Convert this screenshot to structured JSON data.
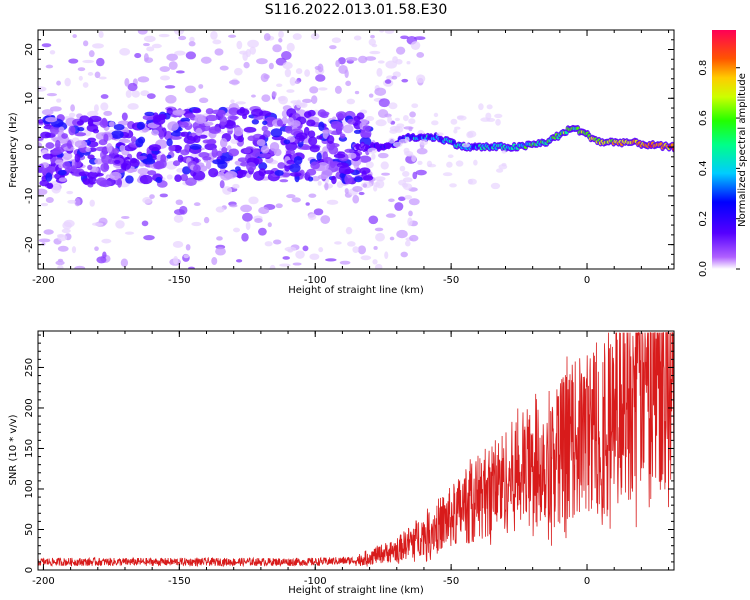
{
  "title": "S116.2022.013.01.58.E30",
  "colors": {
    "signal": "#d81b1b",
    "axis": "#000000"
  },
  "chart_data": [
    {
      "type": "heatmap",
      "xlabel": "Height of straight line (km)",
      "ylabel": "Frequency (Hz)",
      "xlim": [
        -202,
        32
      ],
      "ylim": [
        -25,
        24
      ],
      "x_ticks": [
        -200,
        -150,
        -100,
        -50,
        0
      ],
      "y_ticks": [
        -20,
        -10,
        0,
        10,
        20
      ],
      "colorbar": {
        "label": "Normalized spectral amplitude",
        "range": [
          0.0,
          0.95
        ],
        "ticks": [
          "0.0",
          "0.2",
          "0.4",
          "0.6",
          "0.8"
        ]
      },
      "ridge": [
        {
          "x": -200,
          "y": -1
        },
        {
          "x": -180,
          "y": -1
        },
        {
          "x": -160,
          "y": 0
        },
        {
          "x": -140,
          "y": 1
        },
        {
          "x": -120,
          "y": 1
        },
        {
          "x": -100,
          "y": 0
        },
        {
          "x": -85,
          "y": 0
        },
        {
          "x": -75,
          "y": 0
        },
        {
          "x": -65,
          "y": 2
        },
        {
          "x": -55,
          "y": 2
        },
        {
          "x": -45,
          "y": 0
        },
        {
          "x": -35,
          "y": 0
        },
        {
          "x": -25,
          "y": 0
        },
        {
          "x": -15,
          "y": 1
        },
        {
          "x": -5,
          "y": 4
        },
        {
          "x": 5,
          "y": 1
        },
        {
          "x": 15,
          "y": 1
        },
        {
          "x": 30,
          "y": 0
        }
      ],
      "intensity": [
        {
          "x": -200,
          "v": 0.2
        },
        {
          "x": -90,
          "v": 0.22
        },
        {
          "x": -80,
          "v": 0.3
        },
        {
          "x": -70,
          "v": 0.45
        },
        {
          "x": -50,
          "v": 0.5
        },
        {
          "x": -30,
          "v": 0.55
        },
        {
          "x": -10,
          "v": 0.65
        },
        {
          "x": 10,
          "v": 0.8
        },
        {
          "x": 30,
          "v": 0.9
        }
      ]
    },
    {
      "type": "line",
      "xlabel": "Height of straight line (km)",
      "ylabel": "SNR (10 * v/v)",
      "xlim": [
        -202,
        32
      ],
      "ylim": [
        0,
        295
      ],
      "x_ticks": [
        -200,
        -150,
        -100,
        -50,
        0
      ],
      "y_ticks": [
        0,
        50,
        100,
        150,
        200,
        250
      ],
      "series": [
        {
          "envelope": [
            {
              "x": -200,
              "y": 10
            },
            {
              "x": -100,
              "y": 10
            },
            {
              "x": -85,
              "y": 12
            },
            {
              "x": -70,
              "y": 25
            },
            {
              "x": -60,
              "y": 45
            },
            {
              "x": -50,
              "y": 65
            },
            {
              "x": -40,
              "y": 90
            },
            {
              "x": -30,
              "y": 110
            },
            {
              "x": -20,
              "y": 130
            },
            {
              "x": -10,
              "y": 150
            },
            {
              "x": 0,
              "y": 170
            },
            {
              "x": 10,
              "y": 195
            },
            {
              "x": 20,
              "y": 230
            },
            {
              "x": 30,
              "y": 265
            }
          ]
        }
      ]
    }
  ]
}
